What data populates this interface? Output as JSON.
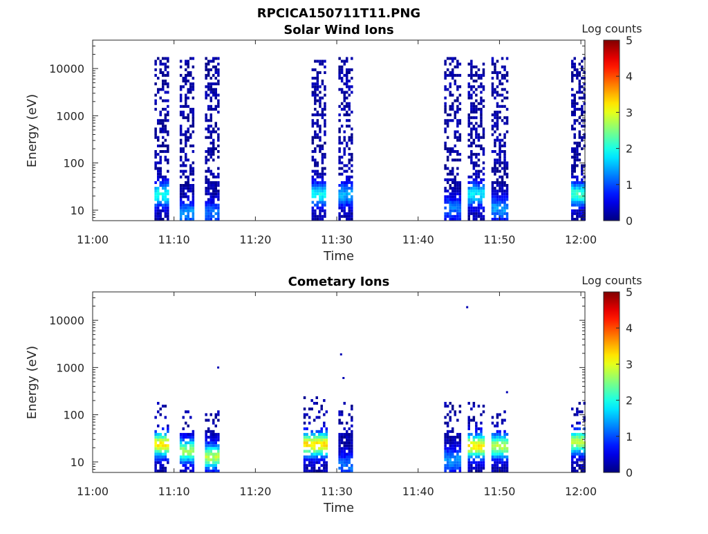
{
  "figure_title": "RPCICA150711T11.PNG",
  "colormap": "jet",
  "chart_data": [
    {
      "type": "heatmap",
      "title": "Solar Wind Ions",
      "xlabel": "Time",
      "ylabel": "Energy (eV)",
      "x_ticks": [
        "11:00",
        "11:10",
        "11:20",
        "11:30",
        "11:40",
        "11:50",
        "12:00"
      ],
      "y_ticks": [
        "10",
        "100",
        "1000",
        "10000"
      ],
      "y_scale": "log",
      "x_range_minutes": [
        0,
        60.5
      ],
      "y_range_eV": [
        6,
        40000
      ],
      "colorbar": {
        "label": "Log counts",
        "ticks": [
          "0",
          "1",
          "2",
          "3",
          "4",
          "5"
        ],
        "range": [
          0,
          5
        ]
      },
      "bursts": [
        {
          "start": 7.6,
          "end": 9.2,
          "emin": 6,
          "emax": 15000,
          "peak_energy": 20,
          "peak": 1.8
        },
        {
          "start": 10.7,
          "end": 12.3,
          "emin": 6,
          "emax": 15000,
          "peak_energy": 8,
          "peak": 1.2
        },
        {
          "start": 13.8,
          "end": 15.6,
          "emin": 6,
          "emax": 15000,
          "peak_energy": 8,
          "peak": 1.0
        },
        {
          "start": 26.9,
          "end": 28.7,
          "emin": 6,
          "emax": 15000,
          "peak_energy": 20,
          "peak": 1.7
        },
        {
          "start": 30.2,
          "end": 32.0,
          "emin": 6,
          "emax": 15000,
          "peak_energy": 20,
          "peak": 1.3
        },
        {
          "start": 43.2,
          "end": 45.0,
          "emin": 6,
          "emax": 15000,
          "peak_energy": 10,
          "peak": 1.0
        },
        {
          "start": 46.1,
          "end": 47.9,
          "emin": 6,
          "emax": 15000,
          "peak_energy": 20,
          "peak": 1.6
        },
        {
          "start": 49.0,
          "end": 50.8,
          "emin": 6,
          "emax": 15000,
          "peak_energy": 10,
          "peak": 1.2
        },
        {
          "start": 58.8,
          "end": 60.3,
          "emin": 6,
          "emax": 15000,
          "peak_energy": 20,
          "peak": 2.0
        }
      ]
    },
    {
      "type": "heatmap",
      "title": "Cometary Ions",
      "xlabel": "Time",
      "ylabel": "Energy (eV)",
      "x_ticks": [
        "11:00",
        "11:10",
        "11:20",
        "11:30",
        "11:40",
        "11:50",
        "12:00"
      ],
      "y_ticks": [
        "10",
        "100",
        "1000",
        "10000"
      ],
      "y_scale": "log",
      "x_range_minutes": [
        0,
        60.5
      ],
      "y_range_eV": [
        6,
        40000
      ],
      "colorbar": {
        "label": "Log counts",
        "ticks": [
          "0",
          "1",
          "2",
          "3",
          "4",
          "5"
        ],
        "range": [
          0,
          5
        ]
      },
      "bursts": [
        {
          "start": 7.6,
          "end": 9.2,
          "emin": 6,
          "emax": 150,
          "peak_energy": 22,
          "peak": 3.0
        },
        {
          "start": 10.7,
          "end": 12.3,
          "emin": 6,
          "emax": 100,
          "peak_energy": 16,
          "peak": 2.4
        },
        {
          "start": 13.8,
          "end": 15.6,
          "emin": 6,
          "emax": 100,
          "peak_energy": 12,
          "peak": 2.6
        },
        {
          "start": 25.9,
          "end": 28.7,
          "emin": 6,
          "emax": 200,
          "peak_energy": 22,
          "peak": 3.1
        },
        {
          "start": 30.2,
          "end": 32.0,
          "emin": 6,
          "emax": 150,
          "peak_energy": 8,
          "peak": 1.0
        },
        {
          "start": 43.2,
          "end": 45.0,
          "emin": 6,
          "emax": 150,
          "peak_energy": 10,
          "peak": 1.2
        },
        {
          "start": 46.1,
          "end": 47.9,
          "emin": 6,
          "emax": 150,
          "peak_energy": 20,
          "peak": 3.0
        },
        {
          "start": 49.0,
          "end": 50.8,
          "emin": 6,
          "emax": 100,
          "peak_energy": 20,
          "peak": 2.6
        },
        {
          "start": 58.8,
          "end": 60.3,
          "emin": 6,
          "emax": 150,
          "peak_energy": 25,
          "peak": 2.6
        }
      ],
      "outliers": [
        {
          "t": 45.9,
          "e": 19000
        },
        {
          "t": 30.4,
          "e": 1900
        },
        {
          "t": 15.3,
          "e": 1000
        },
        {
          "t": 30.7,
          "e": 600
        },
        {
          "t": 50.8,
          "e": 300
        }
      ]
    }
  ]
}
